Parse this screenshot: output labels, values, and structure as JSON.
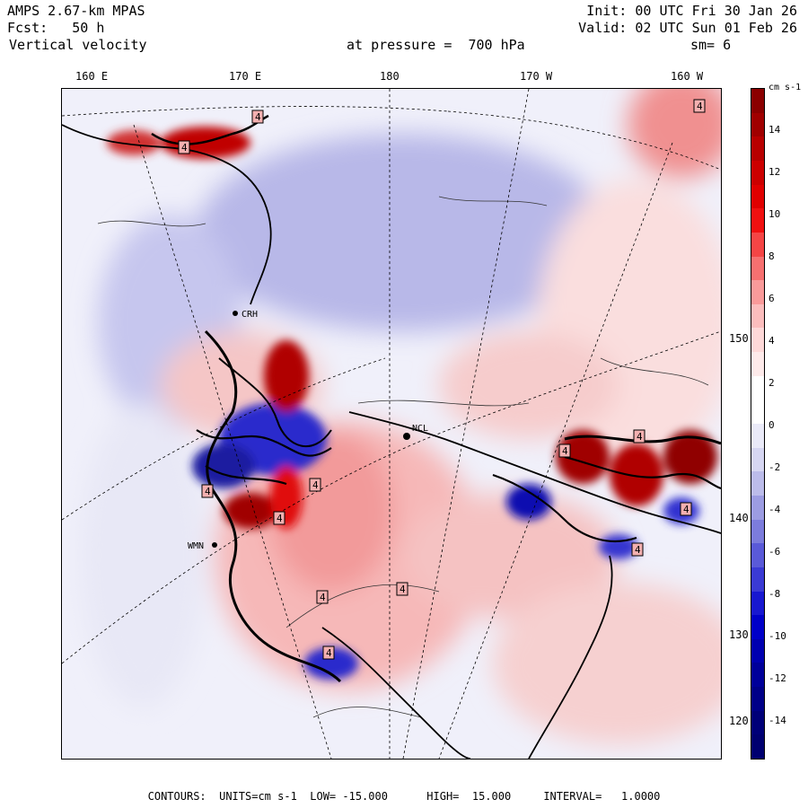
{
  "header": {
    "model": "AMPS 2.67-km MPAS",
    "init": "Init: 00 UTC Fri 30 Jan 26",
    "forecast": "Fcst:   50 h",
    "valid": "Valid: 02 UTC Sun 01 Feb 26",
    "field": "Vertical velocity",
    "pressure": "at pressure =  700 hPa",
    "smoothing": "sm= 6"
  },
  "longitude_labels": [
    "160 E",
    "170 E",
    "180",
    "170 W",
    "160 W"
  ],
  "latitude_labels": [
    "150 W",
    "140 W",
    "130 W",
    "120 W"
  ],
  "stations": [
    "CRH",
    "NCL",
    "WMN"
  ],
  "contour_label_value": "4",
  "colorbar": {
    "units": "cm s-1",
    "ticks": [
      "14",
      "12",
      "10",
      "8",
      "6",
      "4",
      "2",
      "0",
      "-2",
      "-4",
      "-6",
      "-8",
      "-10",
      "-12",
      "-14"
    ],
    "colors": [
      "#8b0000",
      "#a00000",
      "#b80000",
      "#cc0000",
      "#e00000",
      "#f01010",
      "#f54545",
      "#f77070",
      "#f99a9a",
      "#fbbdbd",
      "#fdd8d8",
      "#fdeaea",
      "#ffffff",
      "#ffffff",
      "#eaeaf8",
      "#d6d6f2",
      "#bcbcea",
      "#9c9ce2",
      "#7c7cdc",
      "#5a5ad8",
      "#3a3ad4",
      "#1818d0",
      "#0000c8",
      "#0000b0",
      "#00009a",
      "#000088",
      "#000078",
      "#000070"
    ]
  },
  "footer": "CONTOURS:  UNITS=cm s-1  LOW= -15.000      HIGH=  15.000     INTERVAL=   1.0000",
  "chart_data": {
    "type": "map",
    "title": "Vertical velocity at pressure = 700 hPa",
    "units": "cm s-1",
    "contour_low": -15.0,
    "contour_high": 15.0,
    "contour_interval": 1.0
  }
}
